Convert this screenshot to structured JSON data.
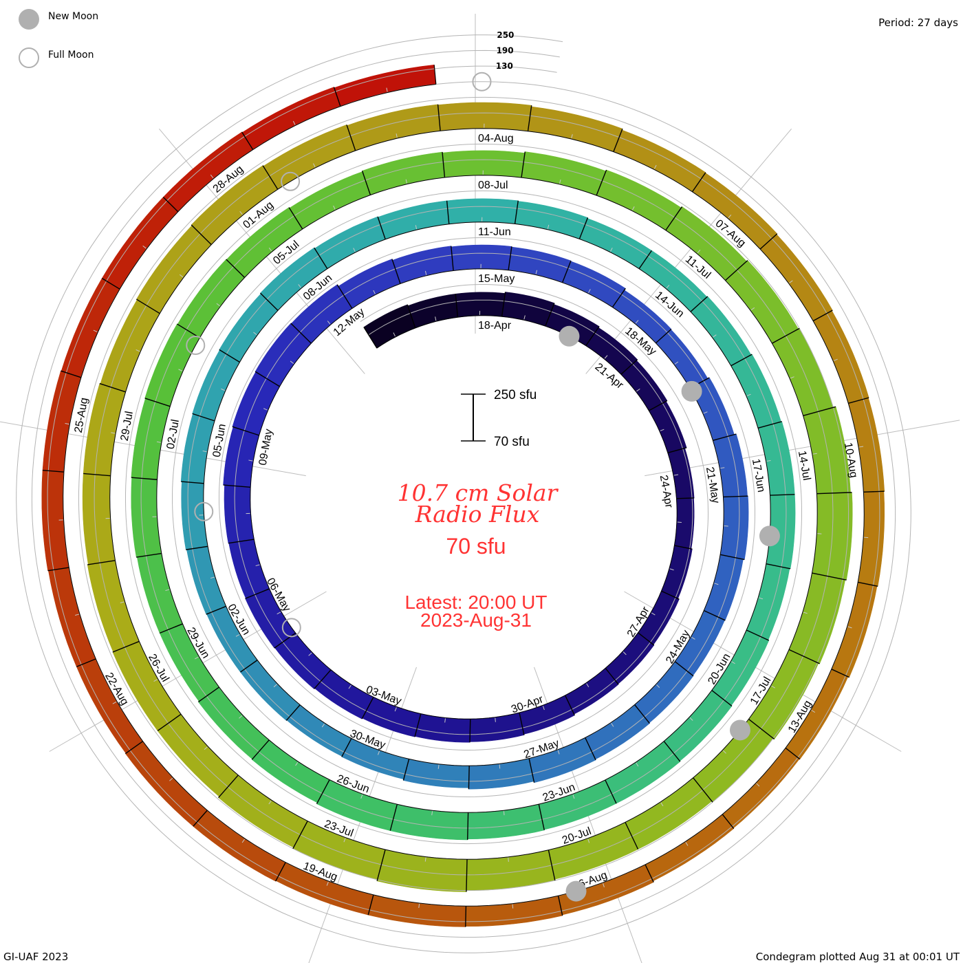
{
  "legend": {
    "new_moon_label": "New Moon",
    "full_moon_label": "Full Moon",
    "new_moon_color": "#b0b0b0",
    "full_moon_color": "#b0b0b0"
  },
  "header": {
    "period": "Period: 27 days"
  },
  "scale_bar": {
    "top_label": "250 sfu",
    "bottom_label": "70 sfu",
    "top_value": 250,
    "bottom_value": 70
  },
  "center": {
    "title_line1": "10.7 cm Solar",
    "title_line2": "Radio Flux",
    "baseline": "70 sfu",
    "latest_line1": "Latest: 20:00 UT",
    "latest_line2": "2023-Aug-31",
    "text_color": "#ff3333"
  },
  "footer": {
    "left": "GI-UAF 2023",
    "right": "Condegram plotted Aug 31 at 00:01 UT"
  },
  "chart_data": {
    "type": "condegram-spiral",
    "title": "10.7 cm Solar Radio Flux",
    "units": "sfu",
    "period_days": 27,
    "baseline_sfu": 70,
    "ring_max_sfu": 250,
    "reference_date": "2023-04-18",
    "start_date": "2023-04-16",
    "guide_levels": [
      {
        "value": 130,
        "label": "130"
      },
      {
        "value": 190,
        "label": "190"
      },
      {
        "value": 250,
        "label": "250"
      }
    ],
    "daily_flux": [
      165,
      160,
      160,
      165,
      160,
      155,
      150,
      145,
      138,
      136,
      140,
      145,
      148,
      150,
      155,
      158,
      160,
      162,
      165,
      168,
      170,
      168,
      170,
      175,
      178,
      180,
      178,
      170,
      165,
      162,
      160,
      158,
      150,
      148,
      155,
      163,
      165,
      160,
      158,
      160,
      162,
      165,
      160,
      155,
      150,
      148,
      150,
      150,
      152,
      155,
      158,
      160,
      162,
      165,
      162,
      160,
      160,
      158,
      155,
      155,
      158,
      162,
      165,
      165,
      162,
      165,
      168,
      170,
      170,
      172,
      175,
      175,
      170,
      168,
      165,
      165,
      168,
      170,
      172,
      170,
      168,
      165,
      168,
      165,
      170,
      175,
      180,
      185,
      190,
      200,
      205,
      200,
      195,
      190,
      185,
      185,
      190,
      195,
      190,
      185,
      180,
      180,
      178,
      175,
      175,
      172,
      175,
      178,
      175,
      172,
      170,
      165,
      160,
      158,
      155,
      152,
      150,
      148,
      145,
      140,
      138,
      140,
      145,
      148,
      150,
      150,
      152,
      152,
      150,
      150,
      152,
      152,
      150,
      150,
      150,
      148,
      145
    ],
    "date_labels": [
      "18-Apr",
      "21-Apr",
      "24-Apr",
      "27-Apr",
      "30-Apr",
      "03-May",
      "06-May",
      "09-May",
      "12-May",
      "15-May",
      "18-May",
      "21-May",
      "24-May",
      "27-May",
      "30-May",
      "02-Jun",
      "05-Jun",
      "08-Jun",
      "11-Jun",
      "14-Jun",
      "17-Jun",
      "20-Jun",
      "23-Jun",
      "26-Jun",
      "29-Jun",
      "02-Jul",
      "05-Jul",
      "08-Jul",
      "11-Jul",
      "14-Jul",
      "17-Jul",
      "20-Jul",
      "23-Jul",
      "26-Jul",
      "29-Jul",
      "01-Aug",
      "04-Aug",
      "07-Aug",
      "10-Aug",
      "13-Aug",
      "16-Aug",
      "19-Aug",
      "22-Aug",
      "25-Aug",
      "28-Aug"
    ],
    "label_interval_days": 3,
    "new_moons": [
      "2023-04-20T04:12Z",
      "2023-05-19T15:53Z",
      "2023-06-18T04:37Z",
      "2023-07-17T18:32Z",
      "2023-08-16T09:38Z"
    ],
    "full_moons": [
      "2023-05-05T17:34Z",
      "2023-06-04T03:42Z",
      "2023-07-03T11:39Z",
      "2023-08-01T18:31Z",
      "2023-08-31T01:35Z"
    ],
    "color_stops": [
      {
        "day": -3,
        "color": "#080018"
      },
      {
        "day": 5,
        "color": "#180860"
      },
      {
        "day": 15,
        "color": "#201498"
      },
      {
        "day": 22,
        "color": "#2828b8"
      },
      {
        "day": 27,
        "color": "#3040c0"
      },
      {
        "day": 35,
        "color": "#3062c0"
      },
      {
        "day": 42,
        "color": "#3084b8"
      },
      {
        "day": 48,
        "color": "#30a0b0"
      },
      {
        "day": 54,
        "color": "#30b0a8"
      },
      {
        "day": 62,
        "color": "#38bc8c"
      },
      {
        "day": 70,
        "color": "#40c060"
      },
      {
        "day": 76,
        "color": "#58c038"
      },
      {
        "day": 82,
        "color": "#70c030"
      },
      {
        "day": 92,
        "color": "#92b820"
      },
      {
        "day": 100,
        "color": "#aaac18"
      },
      {
        "day": 108,
        "color": "#b09818"
      },
      {
        "day": 116,
        "color": "#b87810"
      },
      {
        "day": 124,
        "color": "#b84c0c"
      },
      {
        "day": 132,
        "color": "#c01c08"
      },
      {
        "day": 136,
        "color": "#c00808"
      }
    ]
  }
}
